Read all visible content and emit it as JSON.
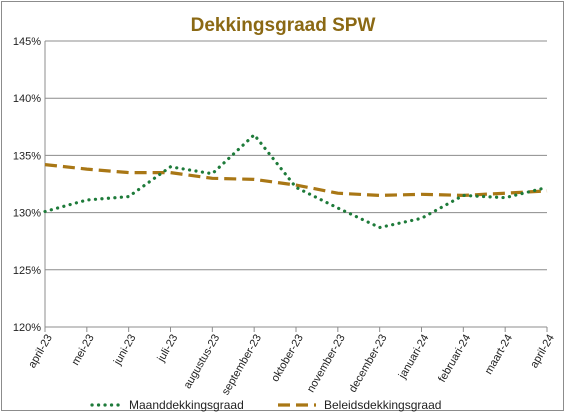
{
  "chart_data": {
    "type": "line",
    "title": "Dekkingsgraad  SPW",
    "title_color": "#8B6914",
    "categories": [
      "april-23",
      "mei-23",
      "juni-23",
      "juli-23",
      "augustus-23",
      "september-23",
      "oktober-23",
      "november-23",
      "december-23",
      "januari-24",
      "februari-24",
      "maart-24",
      "april-24"
    ],
    "ylim": [
      120,
      145
    ],
    "yticks": [
      "120%",
      "125%",
      "130%",
      "135%",
      "140%",
      "145%"
    ],
    "ytick_values": [
      120,
      125,
      130,
      135,
      140,
      145
    ],
    "grid": true,
    "legend_position": "bottom",
    "series": [
      {
        "name": "Maanddekkingsgraad",
        "style": "dotted",
        "color": "#1E7B3A",
        "values": [
          130.1,
          131.1,
          131.4,
          134.0,
          133.4,
          136.8,
          132.2,
          130.4,
          128.7,
          129.5,
          131.5,
          131.3,
          132.2
        ]
      },
      {
        "name": "Beleidsdekkingsgraad",
        "style": "dashed",
        "color": "#A97715",
        "values": [
          134.2,
          133.8,
          133.5,
          133.5,
          133.0,
          132.9,
          132.4,
          131.7,
          131.5,
          131.6,
          131.5,
          131.7,
          131.9
        ]
      }
    ]
  }
}
